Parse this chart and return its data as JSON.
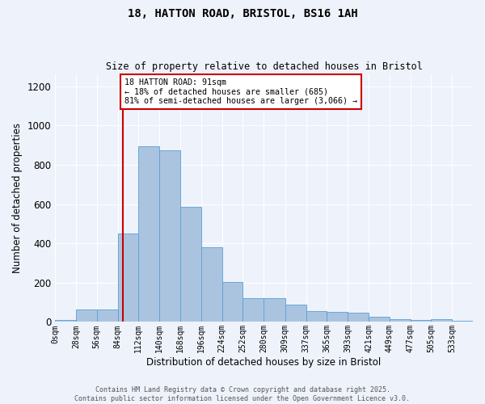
{
  "title": "18, HATTON ROAD, BRISTOL, BS16 1AH",
  "subtitle": "Size of property relative to detached houses in Bristol",
  "xlabel": "Distribution of detached houses by size in Bristol",
  "ylabel": "Number of detached properties",
  "bar_color": "#aac4e0",
  "bar_edge_color": "#5a9fd4",
  "background_color": "#eef2fb",
  "grid_color": "#ffffff",
  "property_line_x": 91,
  "property_line_color": "#cc0000",
  "annotation_text": "18 HATTON ROAD: 91sqm\n← 18% of detached houses are smaller (685)\n81% of semi-detached houses are larger (3,066) →",
  "annotation_box_color": "#cc0000",
  "bin_edges": [
    0,
    28,
    56,
    84,
    112,
    140,
    168,
    196,
    224,
    252,
    280,
    309,
    337,
    365,
    393,
    421,
    449,
    477,
    505,
    533,
    561
  ],
  "bin_counts": [
    8,
    65,
    65,
    450,
    895,
    875,
    585,
    380,
    205,
    120,
    120,
    90,
    55,
    50,
    45,
    25,
    15,
    10,
    15,
    5
  ],
  "ylim": [
    0,
    1260
  ],
  "yticks": [
    0,
    200,
    400,
    600,
    800,
    1000,
    1200
  ],
  "footer_line1": "Contains HM Land Registry data © Crown copyright and database right 2025.",
  "footer_line2": "Contains public sector information licensed under the Open Government Licence v3.0."
}
